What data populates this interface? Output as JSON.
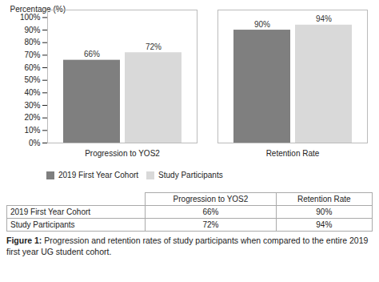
{
  "chart_data": {
    "type": "bar",
    "categories": [
      "Progression to YOS2",
      "Retention Rate"
    ],
    "series": [
      {
        "name": "2019 First Year Cohort",
        "color": "#7f7f7f",
        "values": [
          66,
          90
        ],
        "value_labels": [
          "66%",
          "90%"
        ]
      },
      {
        "name": "Study Participants",
        "color": "#d9d9d9",
        "values": [
          72,
          94
        ],
        "value_labels": [
          "72%",
          "94%"
        ]
      }
    ],
    "ylabel": "Percentage (%)",
    "ylim": [
      0,
      106
    ],
    "yticks": [
      {
        "value": 0,
        "label": "0%"
      },
      {
        "value": 10,
        "label": "10%"
      },
      {
        "value": 20,
        "label": "20%"
      },
      {
        "value": 30,
        "label": "30%"
      },
      {
        "value": 40,
        "label": "40%"
      },
      {
        "value": 50,
        "label": "50%"
      },
      {
        "value": 60,
        "label": "60%"
      },
      {
        "value": 70,
        "label": "70%"
      },
      {
        "value": 80,
        "label": "80%"
      },
      {
        "value": 90,
        "label": "90%"
      },
      {
        "value": 100,
        "label": "100%"
      }
    ],
    "data_labels": true,
    "grid": false,
    "legend": "bottom",
    "caption": "Figure 1: Progression and retention rates of study participants when compared to the entire 2019 first year UG student cohort."
  }
}
